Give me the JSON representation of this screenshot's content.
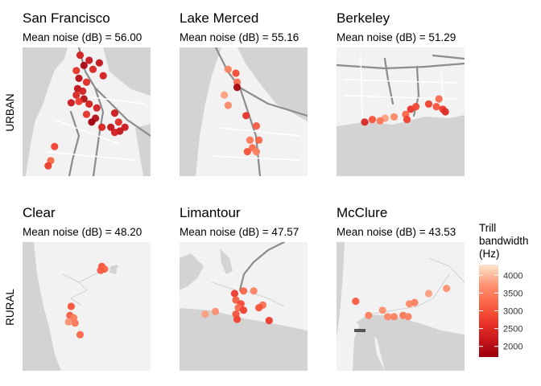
{
  "chart_data": {
    "type": "scatter",
    "rows": [
      "URBAN",
      "RURAL"
    ],
    "legend": {
      "title": [
        "Trill",
        "bandwidth",
        "(Hz)"
      ],
      "ticks": [
        4000,
        3500,
        3000,
        2500,
        2000
      ],
      "range": [
        1700,
        4300
      ],
      "placement": "right"
    },
    "panels": [
      {
        "name": "San Francisco",
        "row": "URBAN",
        "subtitle": "Mean noise (dB) = 56.00",
        "points": [
          [
            0.45,
            0.06,
            2300
          ],
          [
            0.52,
            0.1,
            2200
          ],
          [
            0.6,
            0.12,
            2100
          ],
          [
            0.48,
            0.14,
            1900
          ],
          [
            0.42,
            0.18,
            2600
          ],
          [
            0.55,
            0.17,
            2400
          ],
          [
            0.63,
            0.22,
            2300
          ],
          [
            0.44,
            0.24,
            2000
          ],
          [
            0.5,
            0.27,
            2500
          ],
          [
            0.43,
            0.32,
            2100
          ],
          [
            0.47,
            0.34,
            2300
          ],
          [
            0.42,
            0.37,
            2400
          ],
          [
            0.48,
            0.4,
            2000
          ],
          [
            0.44,
            0.42,
            2700
          ],
          [
            0.52,
            0.44,
            2300
          ],
          [
            0.38,
            0.43,
            2200
          ],
          [
            0.5,
            0.52,
            2600
          ],
          [
            0.58,
            0.47,
            2300
          ],
          [
            0.57,
            0.55,
            2000
          ],
          [
            0.72,
            0.51,
            2200
          ],
          [
            0.54,
            0.58,
            1700
          ],
          [
            0.69,
            0.62,
            2100
          ],
          [
            0.75,
            0.58,
            2500
          ],
          [
            0.8,
            0.62,
            2200
          ],
          [
            0.76,
            0.65,
            2100
          ],
          [
            0.62,
            0.62,
            2400
          ],
          [
            0.72,
            0.66,
            2300
          ],
          [
            0.25,
            0.77,
            2800
          ],
          [
            0.22,
            0.88,
            3200
          ],
          [
            0.2,
            0.92,
            2700
          ]
        ]
      },
      {
        "name": "Lake Merced",
        "row": "URBAN",
        "subtitle": "Mean noise (dB) = 55.16",
        "points": [
          [
            0.38,
            0.17,
            3500
          ],
          [
            0.44,
            0.2,
            2900
          ],
          [
            0.45,
            0.27,
            3300
          ],
          [
            0.45,
            0.31,
            1800
          ],
          [
            0.35,
            0.37,
            3800
          ],
          [
            0.38,
            0.45,
            3600
          ],
          [
            0.52,
            0.53,
            2600
          ],
          [
            0.6,
            0.61,
            3100
          ],
          [
            0.55,
            0.72,
            3400
          ],
          [
            0.62,
            0.72,
            3200
          ],
          [
            0.57,
            0.78,
            3300
          ],
          [
            0.6,
            0.81,
            3500
          ],
          [
            0.53,
            0.81,
            3000
          ]
        ]
      },
      {
        "name": "Berkeley",
        "row": "URBAN",
        "subtitle": "Mean noise (dB) = 51.29",
        "points": [
          [
            0.8,
            0.4,
            3300
          ],
          [
            0.78,
            0.46,
            3000
          ],
          [
            0.72,
            0.44,
            2800
          ],
          [
            0.58,
            0.48,
            2600
          ],
          [
            0.62,
            0.46,
            2900
          ],
          [
            0.54,
            0.52,
            3200
          ],
          [
            0.83,
            0.48,
            2700
          ],
          [
            0.85,
            0.5,
            2500
          ],
          [
            0.45,
            0.54,
            3600
          ],
          [
            0.38,
            0.55,
            3800
          ],
          [
            0.34,
            0.57,
            3400
          ],
          [
            0.28,
            0.56,
            3000
          ],
          [
            0.22,
            0.58,
            2400
          ],
          [
            0.55,
            0.56,
            2800
          ]
        ]
      },
      {
        "name": "Clear",
        "row": "RURAL",
        "subtitle": "Mean noise (dB) = 48.20",
        "points": [
          [
            0.62,
            0.19,
            3000
          ],
          [
            0.64,
            0.21,
            3200
          ],
          [
            0.61,
            0.22,
            3100
          ],
          [
            0.38,
            0.5,
            3000
          ],
          [
            0.37,
            0.57,
            3100
          ],
          [
            0.4,
            0.59,
            3500
          ],
          [
            0.41,
            0.63,
            3400
          ],
          [
            0.36,
            0.62,
            3700
          ],
          [
            0.45,
            0.72,
            3200
          ]
        ]
      },
      {
        "name": "Limantour",
        "row": "RURAL",
        "subtitle": "Mean noise (dB) = 47.57",
        "points": [
          [
            0.43,
            0.4,
            2700
          ],
          [
            0.5,
            0.38,
            3200
          ],
          [
            0.58,
            0.38,
            3500
          ],
          [
            0.44,
            0.45,
            3100
          ],
          [
            0.48,
            0.48,
            2900
          ],
          [
            0.46,
            0.51,
            3300
          ],
          [
            0.5,
            0.53,
            2800
          ],
          [
            0.44,
            0.56,
            3000
          ],
          [
            0.65,
            0.49,
            3300
          ],
          [
            0.62,
            0.51,
            3000
          ],
          [
            0.28,
            0.54,
            3700
          ],
          [
            0.2,
            0.56,
            3800
          ],
          [
            0.45,
            0.6,
            2800
          ],
          [
            0.7,
            0.61,
            2700
          ]
        ]
      },
      {
        "name": "McClure",
        "row": "RURAL",
        "subtitle": "Mean noise (dB) = 43.53",
        "points": [
          [
            0.15,
            0.46,
            3100
          ],
          [
            0.25,
            0.57,
            3500
          ],
          [
            0.36,
            0.53,
            3700
          ],
          [
            0.4,
            0.58,
            3600
          ],
          [
            0.45,
            0.58,
            3500
          ],
          [
            0.52,
            0.57,
            3400
          ],
          [
            0.56,
            0.58,
            3500
          ],
          [
            0.57,
            0.48,
            3600
          ],
          [
            0.61,
            0.47,
            3500
          ],
          [
            0.72,
            0.4,
            3800
          ],
          [
            0.86,
            0.36,
            3700
          ]
        ]
      }
    ]
  }
}
